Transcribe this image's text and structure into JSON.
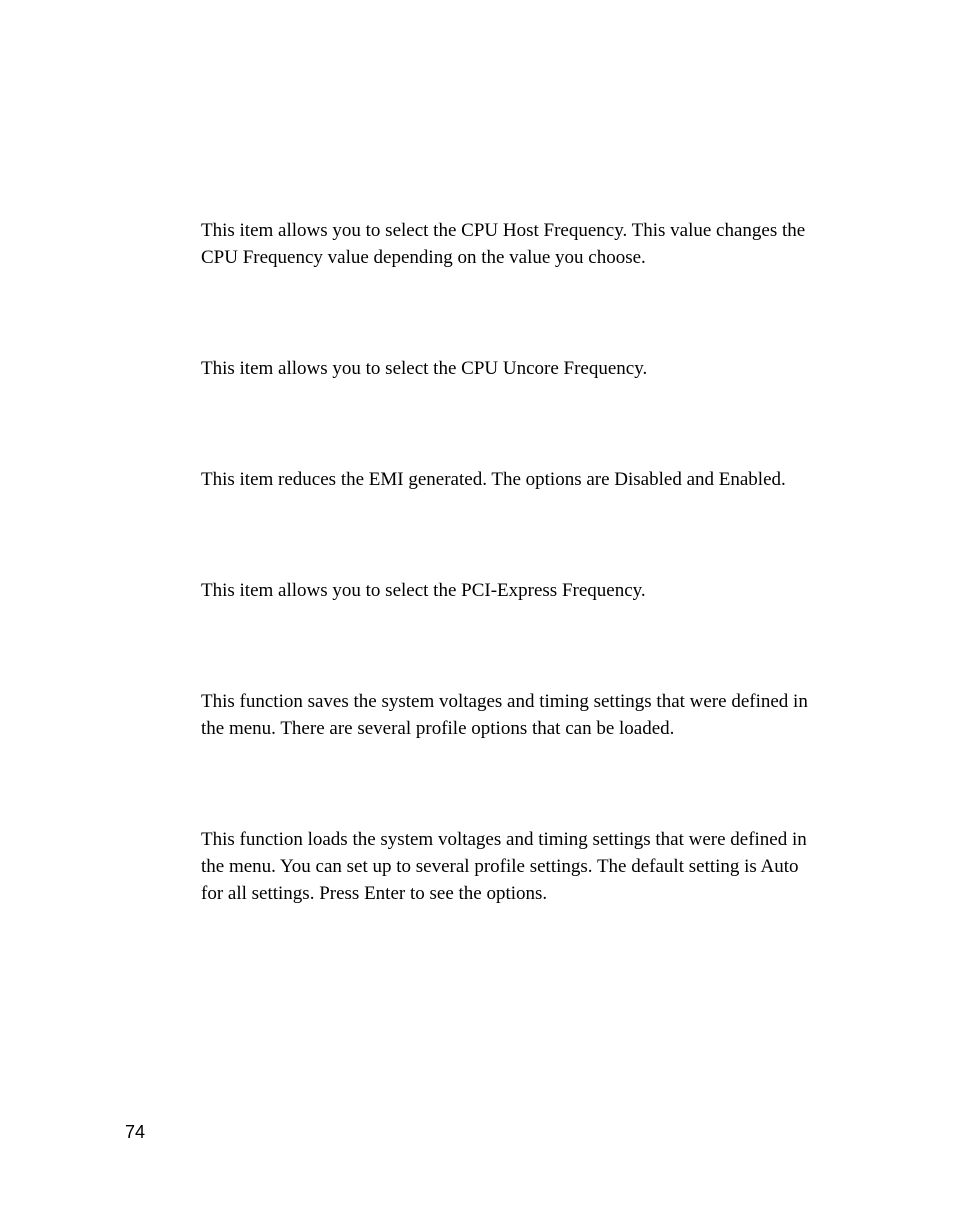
{
  "paragraphs": [
    "This item allows you to select the CPU Host Frequency. This value changes the CPU Frequency value depending on the value you choose.",
    "This item allows you to select the CPU Uncore Frequency.",
    "This item reduces the EMI generated. The options are Disabled and Enabled.",
    "This item allows you to select the PCI-Express Frequency.",
    "This function saves the system voltages and timing settings that were defined in the menu. There are several profile options that can be loaded.",
    "This function loads the system voltages and timing settings that were defined in the menu. You can set up to several profile settings. The default setting is Auto for all settings. Press Enter to see the options."
  ],
  "page_number": "74"
}
